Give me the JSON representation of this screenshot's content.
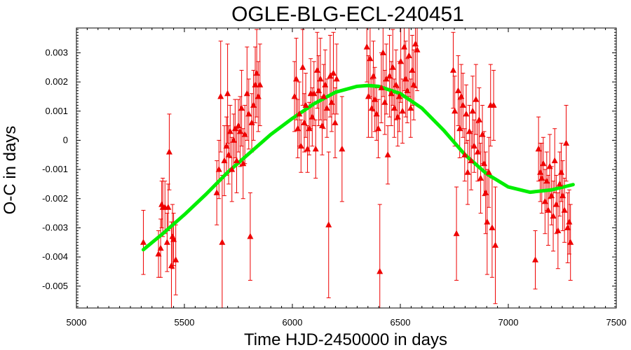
{
  "chart_data": {
    "type": "scatter",
    "title": "OGLE-BLG-ECL-240451",
    "xlabel": "Time HJD-2450000 in days",
    "ylabel": "O-C in days",
    "xlim": [
      5000,
      7500
    ],
    "ylim": [
      -0.00575,
      0.00385
    ],
    "x_ticks": [
      5000,
      5500,
      6000,
      6500,
      7000,
      7500
    ],
    "x_tick_labels": [
      "5000",
      "5500",
      "6000",
      "6500",
      "7000",
      "7500"
    ],
    "y_ticks": [
      0.003,
      0.002,
      0.001,
      0,
      -0.001,
      -0.002,
      -0.003,
      -0.004,
      -0.005
    ],
    "y_tick_labels": [
      "0.003",
      "0.002",
      "0.001",
      "0",
      "-0.001",
      "-0.002",
      "-0.003",
      "-0.004",
      "-0.005"
    ],
    "grid": false,
    "colors": {
      "points": "#ee0000",
      "fit": "#00ee00",
      "axes": "#000000"
    },
    "series": [
      {
        "kind": "points-with-error-bars",
        "marker": "triangle",
        "points": [
          {
            "x": 5310,
            "y": -0.0035,
            "err": 0.0011
          },
          {
            "x": 5380,
            "y": -0.0039,
            "err": 0.0008
          },
          {
            "x": 5390,
            "y": -0.0037,
            "err": 0.001
          },
          {
            "x": 5395,
            "y": -0.0022,
            "err": 0.0008
          },
          {
            "x": 5400,
            "y": -0.0023,
            "err": 0.001
          },
          {
            "x": 5410,
            "y": -0.0023,
            "err": 0.0009
          },
          {
            "x": 5420,
            "y": -0.0035,
            "err": 0.001
          },
          {
            "x": 5425,
            "y": -0.0023,
            "err": 0.0008
          },
          {
            "x": 5430,
            "y": -0.0004,
            "err": 0.0013
          },
          {
            "x": 5440,
            "y": -0.0043,
            "err": 0.0015
          },
          {
            "x": 5445,
            "y": -0.0033,
            "err": 0.0011
          },
          {
            "x": 5450,
            "y": -0.0034,
            "err": 0.0009
          },
          {
            "x": 5460,
            "y": -0.0041,
            "err": 0.0012
          },
          {
            "x": 5650,
            "y": -0.0018,
            "err": 0.0011
          },
          {
            "x": 5660,
            "y": -0.001,
            "err": 0.001
          },
          {
            "x": 5668,
            "y": 0.0015,
            "err": 0.0019
          },
          {
            "x": 5675,
            "y": -0.0035,
            "err": 0.0023
          },
          {
            "x": 5685,
            "y": -0.0007,
            "err": 0.0012
          },
          {
            "x": 5695,
            "y": -0.0002,
            "err": 0.001
          },
          {
            "x": 5700,
            "y": 0.0016,
            "err": 0.0017
          },
          {
            "x": 5705,
            "y": -0.0005,
            "err": 0.001
          },
          {
            "x": 5712,
            "y": 0.0003,
            "err": 0.0009
          },
          {
            "x": 5720,
            "y": -0.001,
            "err": 0.0011
          },
          {
            "x": 5728,
            "y": 0.0,
            "err": 0.0009
          },
          {
            "x": 5735,
            "y": 0.0004,
            "err": 0.001
          },
          {
            "x": 5742,
            "y": -0.0007,
            "err": 0.0011
          },
          {
            "x": 5750,
            "y": 0.0005,
            "err": 0.0009
          },
          {
            "x": 5758,
            "y": 0.0003,
            "err": 0.0012
          },
          {
            "x": 5765,
            "y": 0.0011,
            "err": 0.0013
          },
          {
            "x": 5772,
            "y": -0.0008,
            "err": 0.0012
          },
          {
            "x": 5780,
            "y": 0.0002,
            "err": 0.001
          },
          {
            "x": 5790,
            "y": 0.0016,
            "err": 0.0016
          },
          {
            "x": 5798,
            "y": 0.0009,
            "err": 0.0012
          },
          {
            "x": 5805,
            "y": -0.0033,
            "err": 0.0015
          },
          {
            "x": 5812,
            "y": 0.0006,
            "err": 0.001
          },
          {
            "x": 5820,
            "y": 0.0012,
            "err": 0.0012
          },
          {
            "x": 5828,
            "y": 0.0019,
            "err": 0.0013
          },
          {
            "x": 5835,
            "y": 0.0023,
            "err": 0.0015
          },
          {
            "x": 5842,
            "y": 0.0015,
            "err": 0.0012
          },
          {
            "x": 5850,
            "y": 0.0019,
            "err": 0.0014
          },
          {
            "x": 6010,
            "y": 0.0015,
            "err": 0.0012
          },
          {
            "x": 6018,
            "y": 0.0021,
            "err": 0.0014
          },
          {
            "x": 6025,
            "y": 0.0004,
            "err": 0.001
          },
          {
            "x": 6032,
            "y": 0.0009,
            "err": 0.0011
          },
          {
            "x": 6040,
            "y": -0.0002,
            "err": 0.0009
          },
          {
            "x": 6048,
            "y": 0.0025,
            "err": 0.0013
          },
          {
            "x": 6055,
            "y": 0.0006,
            "err": 0.001
          },
          {
            "x": 6062,
            "y": 0.0012,
            "err": 0.0011
          },
          {
            "x": 6070,
            "y": -0.0003,
            "err": 0.0008
          },
          {
            "x": 6078,
            "y": 0.0004,
            "err": 0.0009
          },
          {
            "x": 6085,
            "y": 0.0016,
            "err": 0.0012
          },
          {
            "x": 6092,
            "y": 0.0008,
            "err": 0.001
          },
          {
            "x": 6100,
            "y": 0.0016,
            "err": 0.0011
          },
          {
            "x": 6108,
            "y": -0.0003,
            "err": 0.001
          },
          {
            "x": 6115,
            "y": 0.0024,
            "err": 0.0013
          },
          {
            "x": 6122,
            "y": 0.0017,
            "err": 0.0012
          },
          {
            "x": 6130,
            "y": 0.0021,
            "err": 0.0014
          },
          {
            "x": 6138,
            "y": 0.0005,
            "err": 0.001
          },
          {
            "x": 6145,
            "y": 0.0015,
            "err": 0.0011
          },
          {
            "x": 6152,
            "y": 0.0019,
            "err": 0.0012
          },
          {
            "x": 6160,
            "y": 0.0011,
            "err": 0.001
          },
          {
            "x": 6168,
            "y": -0.0029,
            "err": 0.0025
          },
          {
            "x": 6175,
            "y": 0.0022,
            "err": 0.0014
          },
          {
            "x": 6182,
            "y": 0.0013,
            "err": 0.001
          },
          {
            "x": 6190,
            "y": 0.0023,
            "err": 0.0014
          },
          {
            "x": 6198,
            "y": 0.0006,
            "err": 0.0012
          },
          {
            "x": 6205,
            "y": 0.0021,
            "err": 0.0012
          },
          {
            "x": 6230,
            "y": -0.0003,
            "err": 0.0018
          },
          {
            "x": 6345,
            "y": 0.0032,
            "err": 0.0012
          },
          {
            "x": 6352,
            "y": 0.0015,
            "err": 0.0014
          },
          {
            "x": 6360,
            "y": 0.0028,
            "err": 0.0013
          },
          {
            "x": 6368,
            "y": 0.0011,
            "err": 0.001
          },
          {
            "x": 6375,
            "y": 0.0022,
            "err": 0.0012
          },
          {
            "x": 6382,
            "y": 0.0014,
            "err": 0.0011
          },
          {
            "x": 6390,
            "y": 0.0009,
            "err": 0.0009
          },
          {
            "x": 6398,
            "y": 0.0004,
            "err": 0.001
          },
          {
            "x": 6405,
            "y": -0.0045,
            "err": 0.0023
          },
          {
            "x": 6412,
            "y": 0.0018,
            "err": 0.0012
          },
          {
            "x": 6420,
            "y": 0.003,
            "err": 0.0015
          },
          {
            "x": 6428,
            "y": 0.0013,
            "err": 0.0011
          },
          {
            "x": 6435,
            "y": 0.0021,
            "err": 0.0012
          },
          {
            "x": 6442,
            "y": -0.0005,
            "err": 0.001
          },
          {
            "x": 6450,
            "y": 0.0022,
            "err": 0.0014
          },
          {
            "x": 6458,
            "y": 0.0016,
            "err": 0.0011
          },
          {
            "x": 6465,
            "y": 0.0025,
            "err": 0.0013
          },
          {
            "x": 6472,
            "y": 0.0011,
            "err": 0.001
          },
          {
            "x": 6480,
            "y": 0.0019,
            "err": 0.0012
          },
          {
            "x": 6488,
            "y": 0.0008,
            "err": 0.001
          },
          {
            "x": 6495,
            "y": 0.0015,
            "err": 0.0012
          },
          {
            "x": 6502,
            "y": 0.0027,
            "err": 0.0014
          },
          {
            "x": 6510,
            "y": 0.001,
            "err": 0.0011
          },
          {
            "x": 6518,
            "y": 0.0032,
            "err": 0.0015
          },
          {
            "x": 6525,
            "y": 0.0021,
            "err": 0.0013
          },
          {
            "x": 6532,
            "y": 0.0017,
            "err": 0.0011
          },
          {
            "x": 6540,
            "y": 0.0029,
            "err": 0.0014
          },
          {
            "x": 6548,
            "y": 0.0011,
            "err": 0.001
          },
          {
            "x": 6555,
            "y": 0.0024,
            "err": 0.0012
          },
          {
            "x": 6562,
            "y": 0.0019,
            "err": 0.0012
          },
          {
            "x": 6570,
            "y": 0.0033,
            "err": 0.0015
          },
          {
            "x": 6578,
            "y": 0.0031,
            "err": 0.0014
          },
          {
            "x": 6745,
            "y": 0.0024,
            "err": 0.0013
          },
          {
            "x": 6752,
            "y": 0.001,
            "err": 0.0012
          },
          {
            "x": 6760,
            "y": -0.0032,
            "err": 0.0016
          },
          {
            "x": 6768,
            "y": 0.0017,
            "err": 0.0012
          },
          {
            "x": 6775,
            "y": 0.0004,
            "err": 0.001
          },
          {
            "x": 6782,
            "y": 0.0015,
            "err": 0.0011
          },
          {
            "x": 6790,
            "y": 0.0012,
            "err": 0.0011
          },
          {
            "x": 6798,
            "y": -0.0005,
            "err": 0.0009
          },
          {
            "x": 6805,
            "y": 0.0009,
            "err": 0.001
          },
          {
            "x": 6812,
            "y": -0.0011,
            "err": 0.0011
          },
          {
            "x": 6820,
            "y": 0.0003,
            "err": 0.0009
          },
          {
            "x": 6828,
            "y": -0.0007,
            "err": 0.001
          },
          {
            "x": 6835,
            "y": 0.001,
            "err": 0.0012
          },
          {
            "x": 6842,
            "y": -0.0002,
            "err": 0.0009
          },
          {
            "x": 6850,
            "y": 0.0014,
            "err": 0.0012
          },
          {
            "x": 6858,
            "y": -0.0004,
            "err": 0.001
          },
          {
            "x": 6865,
            "y": 0.0007,
            "err": 0.0011
          },
          {
            "x": 6872,
            "y": -0.0013,
            "err": 0.0012
          },
          {
            "x": 6880,
            "y": 0.0002,
            "err": 0.001
          },
          {
            "x": 6888,
            "y": -0.0008,
            "err": 0.0011
          },
          {
            "x": 6895,
            "y": -0.0018,
            "err": 0.0014
          },
          {
            "x": 6902,
            "y": -0.0028,
            "err": 0.0018
          },
          {
            "x": 6910,
            "y": -0.0011,
            "err": 0.0012
          },
          {
            "x": 6918,
            "y": 0.0012,
            "err": 0.0014
          },
          {
            "x": 6925,
            "y": -0.003,
            "err": 0.0017
          },
          {
            "x": 6932,
            "y": 0.0012,
            "err": 0.0012
          },
          {
            "x": 6940,
            "y": -0.0036,
            "err": 0.002
          },
          {
            "x": 7125,
            "y": -0.0041,
            "err": 0.001
          },
          {
            "x": 7140,
            "y": -0.0003,
            "err": 0.0011
          },
          {
            "x": 7148,
            "y": -0.0011,
            "err": 0.001
          },
          {
            "x": 7155,
            "y": -0.0013,
            "err": 0.0012
          },
          {
            "x": 7162,
            "y": -0.0008,
            "err": 0.0009
          },
          {
            "x": 7170,
            "y": -0.0021,
            "err": 0.0011
          },
          {
            "x": 7178,
            "y": -0.0014,
            "err": 0.001
          },
          {
            "x": 7185,
            "y": -0.0024,
            "err": 0.0012
          },
          {
            "x": 7192,
            "y": -0.0009,
            "err": 0.0011
          },
          {
            "x": 7200,
            "y": -0.0019,
            "err": 0.001
          },
          {
            "x": 7208,
            "y": -0.0026,
            "err": 0.0012
          },
          {
            "x": 7215,
            "y": -0.0007,
            "err": 0.0011
          },
          {
            "x": 7222,
            "y": -0.0022,
            "err": 0.001
          },
          {
            "x": 7230,
            "y": -0.0031,
            "err": 0.0013
          },
          {
            "x": 7238,
            "y": -0.0015,
            "err": 0.0011
          },
          {
            "x": 7245,
            "y": -0.0011,
            "err": 0.001
          },
          {
            "x": 7252,
            "y": -0.0019,
            "err": 0.0012
          },
          {
            "x": 7260,
            "y": -0.0024,
            "err": 0.0011
          },
          {
            "x": 7268,
            "y": -0.0001,
            "err": 0.0013
          },
          {
            "x": 7275,
            "y": -0.003,
            "err": 0.0012
          },
          {
            "x": 7282,
            "y": -0.0028,
            "err": 0.0011
          },
          {
            "x": 7288,
            "y": -0.0035,
            "err": 0.0013
          }
        ]
      },
      {
        "kind": "fit-curve",
        "points": [
          {
            "x": 5310,
            "y": -0.00375
          },
          {
            "x": 5400,
            "y": -0.0032
          },
          {
            "x": 5500,
            "y": -0.00255
          },
          {
            "x": 5600,
            "y": -0.00185
          },
          {
            "x": 5700,
            "y": -0.0011
          },
          {
            "x": 5800,
            "y": -0.00045
          },
          {
            "x": 5900,
            "y": 0.0002
          },
          {
            "x": 6000,
            "y": 0.00075
          },
          {
            "x": 6100,
            "y": 0.00125
          },
          {
            "x": 6200,
            "y": 0.00165
          },
          {
            "x": 6300,
            "y": 0.00185
          },
          {
            "x": 6350,
            "y": 0.00188
          },
          {
            "x": 6400,
            "y": 0.00185
          },
          {
            "x": 6500,
            "y": 0.0016
          },
          {
            "x": 6600,
            "y": 0.0011
          },
          {
            "x": 6700,
            "y": 0.00035
          },
          {
            "x": 6800,
            "y": -0.0005
          },
          {
            "x": 6900,
            "y": -0.00115
          },
          {
            "x": 7000,
            "y": -0.0016
          },
          {
            "x": 7100,
            "y": -0.00178
          },
          {
            "x": 7200,
            "y": -0.0017
          },
          {
            "x": 7300,
            "y": -0.00152
          }
        ]
      }
    ]
  }
}
